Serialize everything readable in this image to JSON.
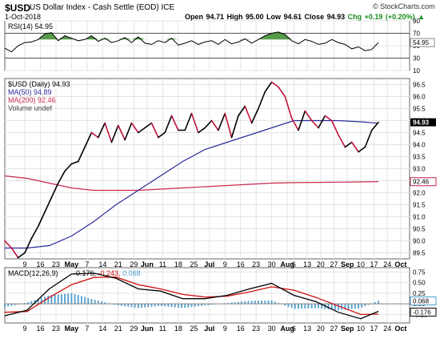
{
  "header": {
    "symbol": "$USD",
    "name": "US Dollar Index - Cash Settle (EOD)  ICE",
    "date": "1-Oct-2018",
    "stats_prefix": "Open 94.71  High 95.00  Low 94.61  Close 94.93",
    "stats_change": "Chg +0.19 (+0.20%)",
    "stats_arrow": "▲",
    "logo": "© StockCharts.com"
  },
  "colors": {
    "price_up": "#000000",
    "price_down": "#c0143c",
    "ma50": "#2a2a9a",
    "ma200": "#c8284c",
    "rsi_line": "#000000",
    "rsi_fill": "#3a8a2a",
    "macd_line": "#000000",
    "signal_line": "#d01010",
    "histogram": "#4f9ecf"
  },
  "chart_data": [
    {
      "type": "line",
      "panel": "RSI",
      "legend": [
        "RSI(14) 54.95"
      ],
      "y_ticks": [
        10,
        30,
        50,
        70,
        90
      ],
      "ylim": [
        10,
        90
      ],
      "levels": [
        30,
        70
      ],
      "last_value_label": "54.95",
      "last_value": 54.95,
      "series": [
        {
          "name": "RSI(14)",
          "x": [
            0,
            3,
            6,
            9,
            12,
            15,
            18,
            21,
            24,
            27,
            30,
            33,
            36,
            39,
            42,
            45,
            48,
            51,
            54,
            57,
            60,
            63,
            66,
            69,
            72,
            75,
            78,
            81,
            84,
            87,
            90,
            93,
            96,
            99,
            102,
            105,
            108,
            111,
            114,
            117,
            120,
            123,
            126,
            129,
            132,
            135,
            138,
            141,
            144,
            147,
            150,
            153,
            156,
            159,
            162,
            165,
            168
          ],
          "values": [
            46,
            40,
            50,
            55,
            56,
            60,
            69,
            71,
            58,
            66,
            62,
            58,
            60,
            66,
            57,
            62,
            55,
            58,
            63,
            55,
            64,
            54,
            52,
            58,
            55,
            62,
            51,
            54,
            58,
            52,
            56,
            58,
            52,
            60,
            53,
            56,
            61,
            54,
            60,
            66,
            70,
            72,
            68,
            58,
            53,
            60,
            57,
            52,
            54,
            60,
            55,
            52,
            45,
            48,
            42,
            44,
            55
          ]
        }
      ]
    },
    {
      "type": "line",
      "panel": "Price",
      "legend": [
        "$USD (Daily) 94.93",
        "MA(50) 94.89",
        "MA(200) 92.46",
        "Volume undef"
      ],
      "y_ticks": [
        89.5,
        90.0,
        90.5,
        91.0,
        91.5,
        92.0,
        92.5,
        93.0,
        93.5,
        94.0,
        94.5,
        95.0,
        95.5,
        96.0,
        96.5
      ],
      "ylim": [
        89.25,
        96.75
      ],
      "last_value_labels": [
        "94.93",
        "92.46"
      ],
      "series": [
        {
          "name": "$USD",
          "x": [
            0,
            3,
            6,
            9,
            12,
            15,
            18,
            21,
            24,
            27,
            30,
            33,
            36,
            39,
            42,
            45,
            48,
            51,
            54,
            57,
            60,
            63,
            66,
            69,
            72,
            75,
            78,
            81,
            84,
            87,
            90,
            93,
            96,
            99,
            102,
            105,
            108,
            111,
            114,
            117,
            120,
            123,
            126,
            129,
            132,
            135,
            138,
            141,
            144,
            147,
            150,
            153,
            156,
            159,
            162,
            165,
            168
          ],
          "values": [
            90.0,
            89.7,
            89.3,
            89.5,
            90.1,
            90.6,
            91.2,
            91.8,
            92.4,
            92.9,
            93.2,
            93.3,
            93.9,
            94.5,
            94.3,
            94.9,
            94.1,
            94.8,
            94.2,
            94.9,
            94.5,
            94.7,
            94.9,
            94.3,
            94.5,
            95.2,
            94.6,
            94.6,
            95.3,
            94.5,
            94.7,
            95.0,
            94.6,
            95.3,
            94.3,
            95.2,
            95.6,
            94.9,
            95.5,
            96.2,
            96.6,
            96.4,
            96.0,
            95.1,
            94.6,
            95.4,
            95.0,
            94.7,
            95.2,
            95.0,
            94.4,
            93.9,
            94.1,
            93.7,
            93.9,
            94.6,
            94.93
          ]
        },
        {
          "name": "MA(50)",
          "x": [
            0,
            10,
            20,
            30,
            40,
            50,
            60,
            70,
            80,
            90,
            100,
            110,
            120,
            130,
            140,
            150,
            160,
            168
          ],
          "values": [
            89.7,
            89.7,
            89.8,
            90.2,
            90.8,
            91.5,
            92.1,
            92.7,
            93.3,
            93.8,
            94.1,
            94.4,
            94.7,
            95.0,
            95.0,
            95.0,
            94.95,
            94.89
          ]
        },
        {
          "name": "MA(200)",
          "x": [
            0,
            10,
            20,
            30,
            40,
            50,
            60,
            70,
            80,
            90,
            100,
            110,
            120,
            130,
            140,
            150,
            160,
            168
          ],
          "values": [
            92.7,
            92.6,
            92.4,
            92.2,
            92.1,
            92.1,
            92.1,
            92.15,
            92.2,
            92.25,
            92.3,
            92.35,
            92.4,
            92.42,
            92.43,
            92.44,
            92.45,
            92.46
          ]
        }
      ]
    },
    {
      "type": "line",
      "panel": "MACD",
      "legend": [
        "MACD(12,26,9)",
        "-0.176, -0.243, 0.068"
      ],
      "y_ticks": [
        -0.25,
        0.0,
        0.25,
        0.5,
        0.75
      ],
      "ylim": [
        -0.45,
        0.85
      ],
      "last_value_labels": [
        "0.068",
        "-0.176"
      ],
      "series": [
        {
          "name": "MACD",
          "x": [
            0,
            10,
            20,
            30,
            40,
            50,
            60,
            70,
            80,
            90,
            100,
            110,
            120,
            130,
            140,
            150,
            160,
            168
          ],
          "values": [
            -0.28,
            -0.15,
            0.35,
            0.7,
            0.72,
            0.6,
            0.35,
            0.3,
            0.12,
            0.12,
            0.2,
            0.35,
            0.48,
            0.2,
            0.05,
            -0.2,
            -0.35,
            -0.176
          ]
        },
        {
          "name": "Signal",
          "x": [
            0,
            10,
            20,
            30,
            40,
            50,
            60,
            70,
            80,
            90,
            100,
            110,
            120,
            130,
            140,
            150,
            160,
            168
          ],
          "values": [
            -0.2,
            -0.18,
            0.15,
            0.45,
            0.62,
            0.63,
            0.45,
            0.35,
            0.22,
            0.16,
            0.18,
            0.28,
            0.4,
            0.32,
            0.15,
            -0.05,
            -0.25,
            -0.243
          ]
        },
        {
          "name": "Histogram",
          "x": [
            0,
            10,
            20,
            30,
            40,
            50,
            60,
            70,
            80,
            90,
            100,
            110,
            120,
            130,
            140,
            150,
            160,
            168
          ],
          "values": [
            -0.08,
            0.03,
            0.2,
            0.25,
            0.1,
            -0.03,
            -0.1,
            -0.05,
            -0.1,
            -0.04,
            0.02,
            0.07,
            0.08,
            -0.12,
            -0.1,
            -0.15,
            -0.1,
            0.068
          ]
        }
      ]
    }
  ],
  "x_axis": {
    "ticks": [
      {
        "x": 9,
        "label": "9"
      },
      {
        "x": 16,
        "label": "16"
      },
      {
        "x": 23,
        "label": "23"
      },
      {
        "x": 30,
        "label": "May",
        "bold": true
      },
      {
        "x": 37,
        "label": "7"
      },
      {
        "x": 44,
        "label": "14"
      },
      {
        "x": 51,
        "label": "21"
      },
      {
        "x": 58,
        "label": "29"
      },
      {
        "x": 64,
        "label": "Jun",
        "bold": true
      },
      {
        "x": 71,
        "label": "11"
      },
      {
        "x": 78,
        "label": "18"
      },
      {
        "x": 85,
        "label": "25"
      },
      {
        "x": 92,
        "label": "Jul",
        "bold": true
      },
      {
        "x": 99,
        "label": "9"
      },
      {
        "x": 106,
        "label": "16"
      },
      {
        "x": 113,
        "label": "23"
      },
      {
        "x": 120,
        "label": "30"
      },
      {
        "x": 127,
        "label": "Aug",
        "bold": true
      },
      {
        "x": 130,
        "label": "6"
      },
      {
        "x": 136,
        "label": "13"
      },
      {
        "x": 142,
        "label": "20"
      },
      {
        "x": 148,
        "label": "27"
      },
      {
        "x": 154,
        "label": "Sep",
        "bold": true
      },
      {
        "x": 160,
        "label": "10"
      },
      {
        "x": 166,
        "label": "17"
      },
      {
        "x": 172,
        "label": "24"
      },
      {
        "x": 178,
        "label": "Oct",
        "bold": true
      }
    ]
  }
}
